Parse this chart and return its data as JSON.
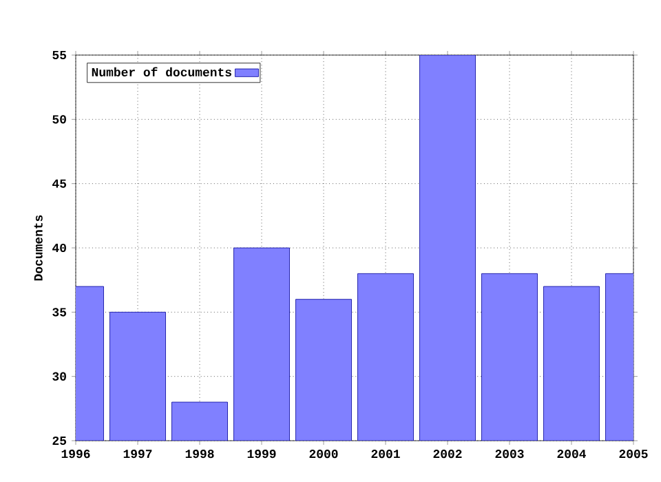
{
  "chart_data": {
    "type": "bar",
    "ylabel": "Documents",
    "x": [
      1996,
      1997,
      1998,
      1999,
      2000,
      2001,
      2002,
      2003,
      2004,
      2005
    ],
    "series": [
      {
        "name": "Number of documents",
        "color": "#8080ff",
        "values": [
          37,
          35,
          28,
          40,
          36,
          38,
          55,
          38,
          37,
          38
        ]
      }
    ],
    "xlim": [
      1996,
      2005
    ],
    "xticks": [
      1996,
      1997,
      1998,
      1999,
      2000,
      2001,
      2002,
      2003,
      2004,
      2005
    ],
    "ylim": [
      25,
      55
    ],
    "yticks": [
      25,
      30,
      35,
      40,
      45,
      50,
      55
    ],
    "grid": true,
    "legend": "top left"
  }
}
